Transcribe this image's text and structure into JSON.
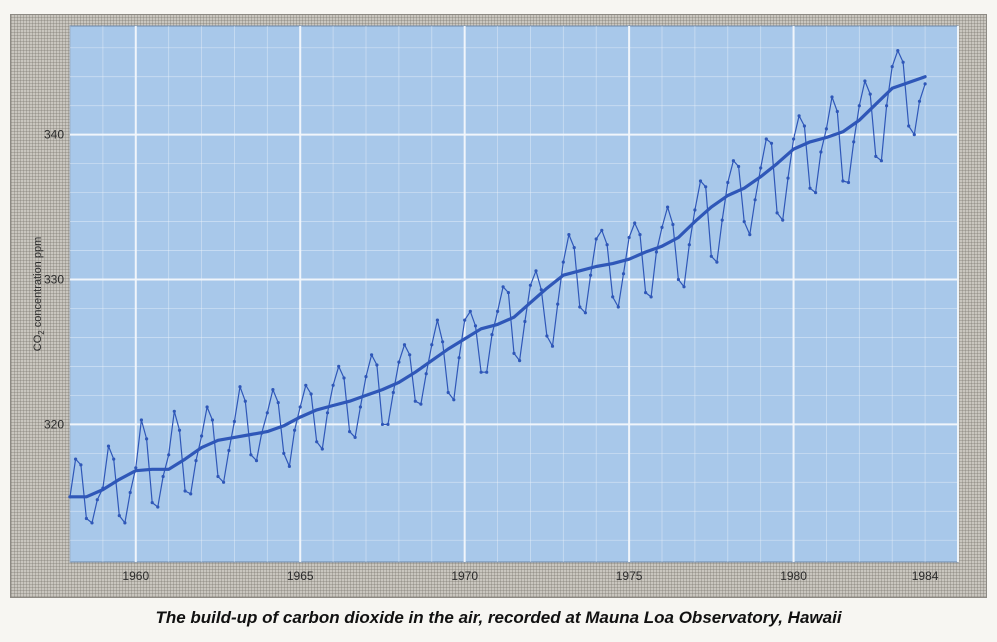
{
  "caption": "The build-up of carbon dioxide in the air, recorded at Mauna Loa Observatory, Hawaii",
  "colors": {
    "plot_background": "#a8c8ea",
    "grid": "#f4f8fc",
    "line": "#2f57b8",
    "frame": "#c9c6bf"
  },
  "chart_data": {
    "type": "line",
    "title": "",
    "xlabel": "",
    "ylabel_parts": {
      "pre": "CO",
      "sub": "2",
      "post": " concentration ppm"
    },
    "xlim": [
      1958.0,
      1985.0
    ],
    "ylim": [
      310.5,
      347.5
    ],
    "x_ticks": [
      1960,
      1965,
      1970,
      1975,
      1980,
      1984
    ],
    "x_tick_labels": [
      "1960",
      "1965",
      "1970",
      "1975",
      "1980",
      "1984"
    ],
    "y_ticks": [
      320,
      330,
      340
    ],
    "y_tick_labels": [
      "320",
      "330",
      "340"
    ],
    "grid": true,
    "legend": "none",
    "series": [
      {
        "role": "trend",
        "x": [
          1958.0,
          1958.5,
          1959.0,
          1959.5,
          1960.0,
          1960.5,
          1961.0,
          1961.5,
          1962.0,
          1962.5,
          1963.0,
          1963.5,
          1964.0,
          1964.5,
          1965.0,
          1965.5,
          1966.0,
          1966.5,
          1967.0,
          1967.5,
          1968.0,
          1968.5,
          1969.0,
          1969.5,
          1970.0,
          1970.5,
          1971.0,
          1971.5,
          1972.0,
          1972.5,
          1973.0,
          1973.5,
          1974.0,
          1974.5,
          1975.0,
          1975.5,
          1976.0,
          1976.5,
          1977.0,
          1977.5,
          1978.0,
          1978.5,
          1979.0,
          1979.5,
          1980.0,
          1980.5,
          1981.0,
          1981.5,
          1982.0,
          1982.5,
          1983.0,
          1983.5,
          1984.0
        ],
        "values": [
          315.0,
          315.0,
          315.5,
          316.2,
          316.8,
          316.9,
          316.9,
          317.6,
          318.4,
          318.9,
          319.1,
          319.3,
          319.5,
          319.9,
          320.5,
          321.0,
          321.3,
          321.6,
          322.0,
          322.4,
          322.9,
          323.6,
          324.4,
          325.2,
          325.9,
          326.6,
          326.9,
          327.4,
          328.4,
          329.4,
          330.3,
          330.6,
          330.9,
          331.1,
          331.4,
          331.9,
          332.3,
          332.9,
          334.0,
          335.0,
          335.8,
          336.3,
          337.1,
          338.0,
          339.0,
          339.5,
          339.8,
          340.2,
          341.0,
          342.1,
          343.2,
          343.6,
          344.0
        ]
      },
      {
        "role": "monthly",
        "x": [
          1958.0,
          1958.17,
          1958.33,
          1958.5,
          1958.67,
          1958.83,
          1959.0,
          1959.17,
          1959.33,
          1959.5,
          1959.67,
          1959.83,
          1960.0,
          1960.17,
          1960.33,
          1960.5,
          1960.67,
          1960.83,
          1961.0,
          1961.17,
          1961.33,
          1961.5,
          1961.67,
          1961.83,
          1962.0,
          1962.17,
          1962.33,
          1962.5,
          1962.67,
          1962.83,
          1963.0,
          1963.17,
          1963.33,
          1963.5,
          1963.67,
          1963.83,
          1964.0,
          1964.17,
          1964.33,
          1964.5,
          1964.67,
          1964.83,
          1965.0,
          1965.17,
          1965.33,
          1965.5,
          1965.67,
          1965.83,
          1966.0,
          1966.17,
          1966.33,
          1966.5,
          1966.67,
          1966.83,
          1967.0,
          1967.17,
          1967.33,
          1967.5,
          1967.67,
          1967.83,
          1968.0,
          1968.17,
          1968.33,
          1968.5,
          1968.67,
          1968.83,
          1969.0,
          1969.17,
          1969.33,
          1969.5,
          1969.67,
          1969.83,
          1970.0,
          1970.17,
          1970.33,
          1970.5,
          1970.67,
          1970.83,
          1971.0,
          1971.17,
          1971.33,
          1971.5,
          1971.67,
          1971.83,
          1972.0,
          1972.17,
          1972.33,
          1972.5,
          1972.67,
          1972.83,
          1973.0,
          1973.17,
          1973.33,
          1973.5,
          1973.67,
          1973.83,
          1974.0,
          1974.17,
          1974.33,
          1974.5,
          1974.67,
          1974.83,
          1975.0,
          1975.17,
          1975.33,
          1975.5,
          1975.67,
          1975.83,
          1976.0,
          1976.17,
          1976.33,
          1976.5,
          1976.67,
          1976.83,
          1977.0,
          1977.17,
          1977.33,
          1977.5,
          1977.67,
          1977.83,
          1978.0,
          1978.17,
          1978.33,
          1978.5,
          1978.67,
          1978.83,
          1979.0,
          1979.17,
          1979.33,
          1979.5,
          1979.67,
          1979.83,
          1980.0,
          1980.17,
          1980.33,
          1980.5,
          1980.67,
          1980.83,
          1981.0,
          1981.17,
          1981.33,
          1981.5,
          1981.67,
          1981.83,
          1982.0,
          1982.17,
          1982.33,
          1982.5,
          1982.67,
          1982.83,
          1983.0,
          1983.17,
          1983.33,
          1983.5,
          1983.67,
          1983.83,
          1984.0
        ],
        "values": [
          315.0,
          317.6,
          317.2,
          313.5,
          313.2,
          314.8,
          315.6,
          318.5,
          317.6,
          313.7,
          313.2,
          315.3,
          317.0,
          320.3,
          319.0,
          314.6,
          314.3,
          316.4,
          317.9,
          320.9,
          319.6,
          315.4,
          315.2,
          317.5,
          319.2,
          321.2,
          320.3,
          316.4,
          316.0,
          318.2,
          320.2,
          322.6,
          321.6,
          317.9,
          317.5,
          319.4,
          320.8,
          322.4,
          321.5,
          318.0,
          317.1,
          319.6,
          321.2,
          322.7,
          322.1,
          318.8,
          318.3,
          320.8,
          322.7,
          324.0,
          323.2,
          319.5,
          319.1,
          321.2,
          323.3,
          324.8,
          324.1,
          320.0,
          320.0,
          322.2,
          324.3,
          325.5,
          324.8,
          321.6,
          321.4,
          323.5,
          325.5,
          327.2,
          325.7,
          322.2,
          321.7,
          324.6,
          327.2,
          327.8,
          326.8,
          323.6,
          323.6,
          326.2,
          327.8,
          329.5,
          329.1,
          324.9,
          324.4,
          327.1,
          329.6,
          330.6,
          329.3,
          326.1,
          325.4,
          328.3,
          331.2,
          333.1,
          332.2,
          328.1,
          327.7,
          330.3,
          332.8,
          333.4,
          332.4,
          328.8,
          328.1,
          330.4,
          332.9,
          333.9,
          333.1,
          329.1,
          328.8,
          331.9,
          333.6,
          335.0,
          333.8,
          330.0,
          329.5,
          332.4,
          334.8,
          336.8,
          336.4,
          331.6,
          331.2,
          334.1,
          336.7,
          338.2,
          337.8,
          334.0,
          333.1,
          335.5,
          337.7,
          339.7,
          339.4,
          334.6,
          334.1,
          337.0,
          339.7,
          341.3,
          340.6,
          336.3,
          336.0,
          338.8,
          340.4,
          342.6,
          341.6,
          336.8,
          336.7,
          339.5,
          342.0,
          343.7,
          342.8,
          338.5,
          338.2,
          342.0,
          344.7,
          345.8,
          345.0,
          340.6,
          340.0,
          342.3,
          343.5
        ]
      }
    ]
  }
}
